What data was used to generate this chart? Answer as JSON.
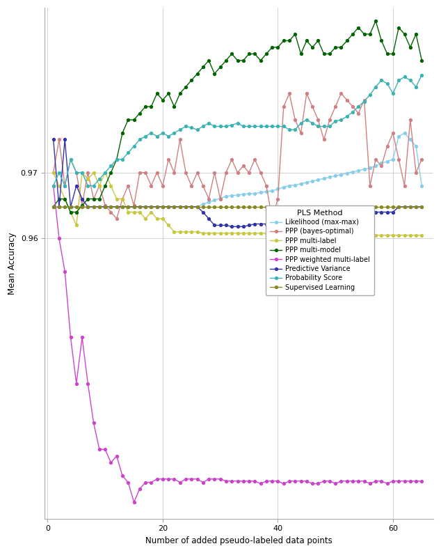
{
  "title": "",
  "xlabel": "Number of added pseudo-labeled data points",
  "ylabel": "Mean Accuracy",
  "legend_title": "PLS Method",
  "xlim": [
    -0.5,
    67
  ],
  "ylim": [
    0.9175,
    0.995
  ],
  "yticks": [
    0.96,
    0.97
  ],
  "xticks": [
    0,
    20,
    40,
    60
  ],
  "colors": {
    "likelihood_maxmax": "#87CEEB",
    "ppp_bayes": "#D08080",
    "ppp_multilabel": "#C8C840",
    "ppp_multimodel": "#006400",
    "ppp_weighted": "#CC44CC",
    "pred_variance": "#3333AA",
    "prob_score": "#3CB3B3",
    "supervised": "#888820"
  },
  "x": [
    1,
    2,
    3,
    4,
    5,
    6,
    7,
    8,
    9,
    10,
    11,
    12,
    13,
    14,
    15,
    16,
    17,
    18,
    19,
    20,
    21,
    22,
    23,
    24,
    25,
    26,
    27,
    28,
    29,
    30,
    31,
    32,
    33,
    34,
    35,
    36,
    37,
    38,
    39,
    40,
    41,
    42,
    43,
    44,
    45,
    46,
    47,
    48,
    49,
    50,
    51,
    52,
    53,
    54,
    55,
    56,
    57,
    58,
    59,
    60,
    61,
    62,
    63,
    64,
    65
  ],
  "likelihood_maxmax": [
    0.9648,
    0.9648,
    0.9648,
    0.9648,
    0.9648,
    0.9648,
    0.9648,
    0.9648,
    0.9648,
    0.9648,
    0.9648,
    0.9648,
    0.9648,
    0.9648,
    0.9648,
    0.9648,
    0.9648,
    0.9648,
    0.9648,
    0.9648,
    0.9648,
    0.9648,
    0.9648,
    0.9648,
    0.9648,
    0.9648,
    0.9652,
    0.9655,
    0.9658,
    0.9661,
    0.9664,
    0.9665,
    0.9666,
    0.9667,
    0.9668,
    0.9668,
    0.967,
    0.9671,
    0.9672,
    0.9675,
    0.9678,
    0.968,
    0.9681,
    0.9683,
    0.9685,
    0.9687,
    0.9689,
    0.9691,
    0.9693,
    0.9695,
    0.9697,
    0.9699,
    0.9701,
    0.9703,
    0.9705,
    0.9707,
    0.971,
    0.9714,
    0.9717,
    0.972,
    0.9755,
    0.976,
    0.975,
    0.974,
    0.968
  ],
  "ppp_bayes": [
    0.97,
    0.975,
    0.968,
    0.972,
    0.97,
    0.965,
    0.97,
    0.966,
    0.968,
    0.965,
    0.964,
    0.963,
    0.966,
    0.968,
    0.965,
    0.97,
    0.97,
    0.968,
    0.97,
    0.968,
    0.972,
    0.97,
    0.975,
    0.97,
    0.968,
    0.97,
    0.968,
    0.966,
    0.97,
    0.966,
    0.97,
    0.972,
    0.97,
    0.971,
    0.97,
    0.972,
    0.97,
    0.968,
    0.963,
    0.966,
    0.98,
    0.982,
    0.978,
    0.976,
    0.982,
    0.98,
    0.978,
    0.975,
    0.978,
    0.98,
    0.982,
    0.981,
    0.98,
    0.979,
    0.981,
    0.968,
    0.972,
    0.971,
    0.974,
    0.976,
    0.972,
    0.968,
    0.978,
    0.97,
    0.972
  ],
  "ppp_multilabel": [
    0.97,
    0.968,
    0.966,
    0.964,
    0.962,
    0.97,
    0.969,
    0.97,
    0.968,
    0.97,
    0.968,
    0.966,
    0.966,
    0.964,
    0.964,
    0.964,
    0.963,
    0.964,
    0.963,
    0.963,
    0.962,
    0.961,
    0.961,
    0.961,
    0.961,
    0.961,
    0.9608,
    0.9608,
    0.9608,
    0.9608,
    0.9608,
    0.9608,
    0.9608,
    0.9608,
    0.9608,
    0.9608,
    0.9608,
    0.9608,
    0.9608,
    0.9608,
    0.9608,
    0.9608,
    0.9608,
    0.9605,
    0.9605,
    0.9605,
    0.9605,
    0.9605,
    0.9605,
    0.9605,
    0.9605,
    0.9605,
    0.9605,
    0.9605,
    0.9605,
    0.9605,
    0.9605,
    0.9605,
    0.9605,
    0.9605,
    0.9605,
    0.9605,
    0.9605,
    0.9605,
    0.9605
  ],
  "ppp_multimodel": [
    0.9648,
    0.966,
    0.966,
    0.964,
    0.964,
    0.965,
    0.966,
    0.966,
    0.966,
    0.968,
    0.97,
    0.972,
    0.976,
    0.978,
    0.978,
    0.979,
    0.98,
    0.98,
    0.982,
    0.981,
    0.982,
    0.98,
    0.982,
    0.983,
    0.984,
    0.985,
    0.986,
    0.987,
    0.985,
    0.986,
    0.987,
    0.988,
    0.987,
    0.987,
    0.988,
    0.988,
    0.987,
    0.988,
    0.989,
    0.989,
    0.99,
    0.99,
    0.991,
    0.988,
    0.99,
    0.989,
    0.99,
    0.988,
    0.988,
    0.989,
    0.989,
    0.99,
    0.991,
    0.992,
    0.991,
    0.991,
    0.993,
    0.99,
    0.988,
    0.988,
    0.992,
    0.991,
    0.989,
    0.991,
    0.987
  ],
  "ppp_weighted": [
    0.968,
    0.96,
    0.955,
    0.945,
    0.938,
    0.945,
    0.938,
    0.932,
    0.928,
    0.928,
    0.926,
    0.927,
    0.924,
    0.923,
    0.92,
    0.922,
    0.923,
    0.923,
    0.9235,
    0.9235,
    0.9235,
    0.9235,
    0.923,
    0.9235,
    0.9235,
    0.9235,
    0.923,
    0.9235,
    0.9235,
    0.9235,
    0.9232,
    0.9232,
    0.9232,
    0.9232,
    0.9232,
    0.9232,
    0.9228,
    0.9232,
    0.9232,
    0.9232,
    0.9228,
    0.9232,
    0.9232,
    0.9232,
    0.9232,
    0.9228,
    0.9228,
    0.9232,
    0.9232,
    0.9228,
    0.9232,
    0.9232,
    0.9232,
    0.9232,
    0.9232,
    0.9228,
    0.9232,
    0.9232,
    0.9228,
    0.9232,
    0.9232,
    0.9232,
    0.9232,
    0.9232,
    0.9232
  ],
  "pred_variance": [
    0.975,
    0.9648,
    0.975,
    0.9648,
    0.968,
    0.966,
    0.9648,
    0.9648,
    0.9648,
    0.9648,
    0.9648,
    0.9648,
    0.9648,
    0.9648,
    0.9648,
    0.9648,
    0.9648,
    0.9648,
    0.9648,
    0.9648,
    0.9648,
    0.9648,
    0.9648,
    0.9648,
    0.9648,
    0.9648,
    0.964,
    0.963,
    0.962,
    0.962,
    0.962,
    0.9618,
    0.9618,
    0.9618,
    0.962,
    0.9622,
    0.9622,
    0.9622,
    0.9624,
    0.9626,
    0.964,
    0.9638,
    0.964,
    0.9638,
    0.964,
    0.964,
    0.964,
    0.964,
    0.964,
    0.964,
    0.964,
    0.964,
    0.964,
    0.964,
    0.964,
    0.964,
    0.964,
    0.964,
    0.964,
    0.964,
    0.9648,
    0.9648,
    0.9648,
    0.9648,
    0.9648
  ],
  "prob_score": [
    0.968,
    0.97,
    0.968,
    0.972,
    0.97,
    0.97,
    0.968,
    0.968,
    0.969,
    0.97,
    0.971,
    0.972,
    0.972,
    0.973,
    0.974,
    0.975,
    0.9755,
    0.976,
    0.9755,
    0.976,
    0.9755,
    0.976,
    0.9765,
    0.977,
    0.9768,
    0.9765,
    0.977,
    0.9775,
    0.977,
    0.977,
    0.977,
    0.9772,
    0.9775,
    0.977,
    0.977,
    0.977,
    0.977,
    0.977,
    0.977,
    0.977,
    0.977,
    0.9765,
    0.9765,
    0.9775,
    0.978,
    0.9775,
    0.977,
    0.977,
    0.977,
    0.9778,
    0.978,
    0.9785,
    0.9792,
    0.98,
    0.9808,
    0.9818,
    0.983,
    0.984,
    0.9835,
    0.982,
    0.984,
    0.9845,
    0.984,
    0.983,
    0.9848
  ],
  "supervised": [
    0.9648,
    0.9648,
    0.9648,
    0.9648,
    0.9648,
    0.9648,
    0.9648,
    0.9648,
    0.9648,
    0.9648,
    0.9648,
    0.9648,
    0.9648,
    0.9648,
    0.9648,
    0.9648,
    0.9648,
    0.9648,
    0.9648,
    0.9648,
    0.9648,
    0.9648,
    0.9648,
    0.9648,
    0.9648,
    0.9648,
    0.9648,
    0.9648,
    0.9648,
    0.9648,
    0.9648,
    0.9648,
    0.9648,
    0.9648,
    0.9648,
    0.9648,
    0.9648,
    0.9648,
    0.9648,
    0.9648,
    0.9648,
    0.9648,
    0.9648,
    0.9648,
    0.9648,
    0.9648,
    0.9648,
    0.9648,
    0.9648,
    0.9648,
    0.9648,
    0.9648,
    0.9648,
    0.9648,
    0.9648,
    0.9648,
    0.9648,
    0.9648,
    0.9648,
    0.9648,
    0.9648,
    0.9648,
    0.9648,
    0.9648,
    0.9648
  ]
}
